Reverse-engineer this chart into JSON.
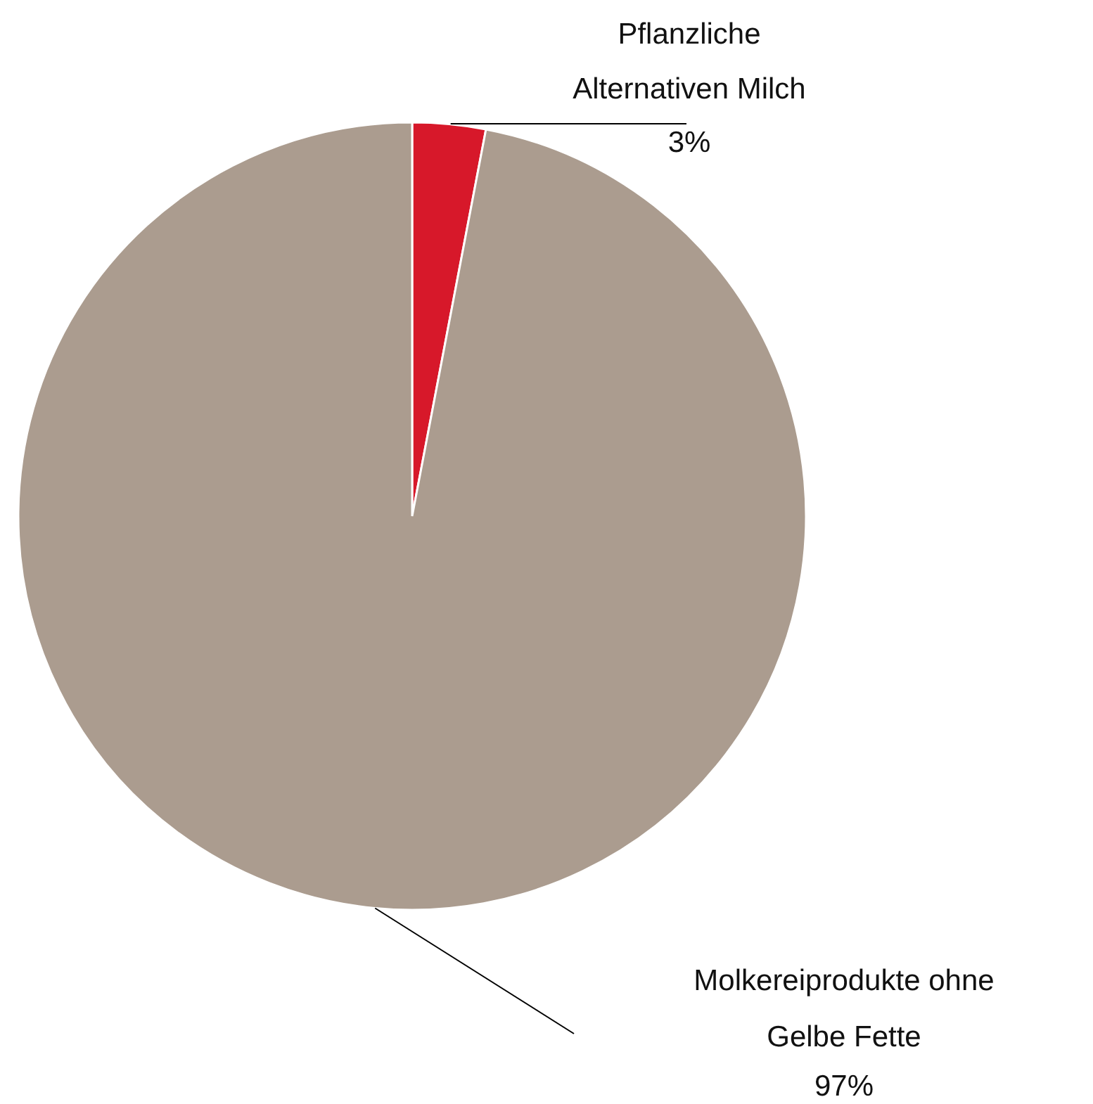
{
  "chart_data": {
    "type": "pie",
    "categories": [
      "Pflanzliche Alternativen Milch",
      "Molkereiprodukte ohne Gelbe Fette"
    ],
    "values": [
      3,
      97
    ],
    "colors": [
      "#d7182a",
      "#ab9c8f"
    ],
    "value_labels": [
      "3%",
      "97%"
    ]
  }
}
